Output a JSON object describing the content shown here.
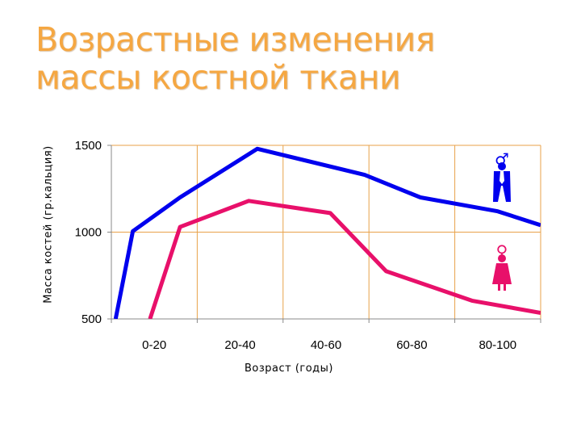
{
  "title_lines": [
    "Возрастные изменения",
    "массы костной ткани"
  ],
  "chart_data": {
    "type": "line",
    "title": "Возрастные изменения массы костной ткани",
    "xlabel": "Возраст (годы)",
    "ylabel": "Масса костей (гр.кальция)",
    "categories": [
      "0-20",
      "20-40",
      "40-60",
      "60-80",
      "80-100"
    ],
    "ylim": [
      500,
      1500
    ],
    "yticks": [
      1500,
      1000,
      500
    ],
    "x_domain": [
      0,
      5
    ],
    "grid": true,
    "series": [
      {
        "symbol": "♂",
        "color": "#0000ee",
        "x": [
          0.05,
          0.25,
          0.8,
          1.7,
          2.95,
          3.6,
          4.5,
          5.0
        ],
        "values": [
          500,
          1005,
          1200,
          1480,
          1330,
          1200,
          1120,
          1040
        ]
      },
      {
        "symbol": "♀",
        "color": "#e8106a",
        "x": [
          0.45,
          0.8,
          1.6,
          2.55,
          3.2,
          4.2,
          5.0
        ],
        "values": [
          500,
          1030,
          1180,
          1110,
          775,
          605,
          535
        ]
      }
    ]
  }
}
